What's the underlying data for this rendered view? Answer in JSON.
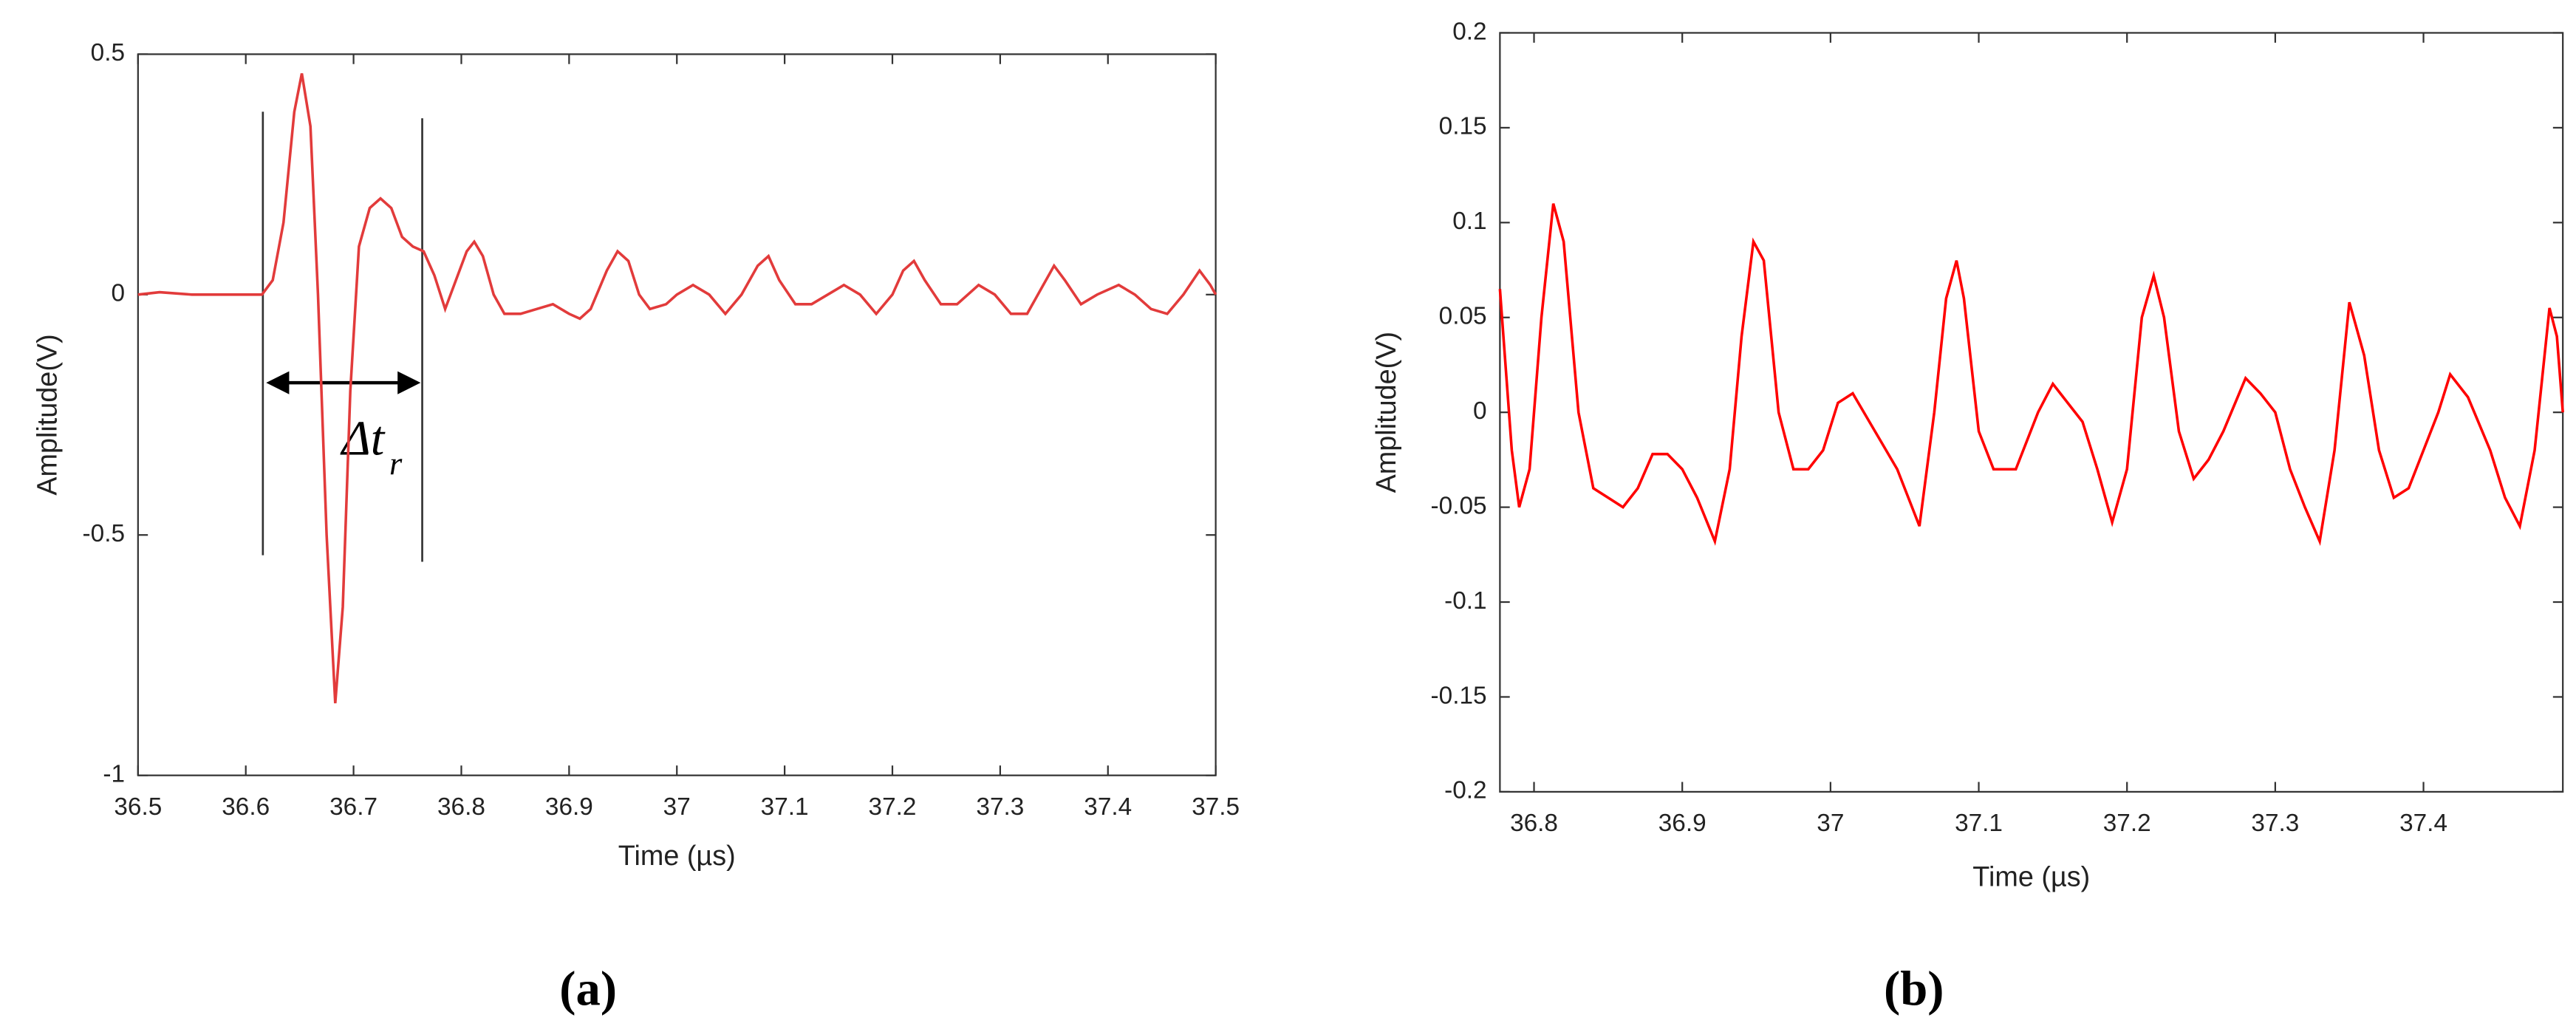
{
  "chart_data": [
    {
      "type": "line",
      "caption": "(a)",
      "xlabel": "Time (µs)",
      "ylabel": "Amplitude(V)",
      "xlim": [
        36.5,
        37.5
      ],
      "ylim": [
        -1,
        0.5
      ],
      "xticks": [
        36.5,
        36.6,
        36.7,
        36.8,
        36.9,
        37,
        37.1,
        37.2,
        37.3,
        37.4,
        37.5
      ],
      "yticks": [
        -1,
        -0.5,
        0,
        0.5
      ],
      "annotation": {
        "text": "Δt",
        "subscript": "r"
      },
      "series": [
        {
          "color": "#e23b3b",
          "x": [
            36.5,
            36.52,
            36.55,
            36.6,
            36.615,
            36.625,
            36.635,
            36.645,
            36.652,
            36.66,
            36.667,
            36.675,
            36.683,
            36.69,
            36.697,
            36.705,
            36.715,
            36.725,
            36.735,
            36.745,
            36.755,
            36.765,
            36.775,
            36.785,
            36.795,
            36.805,
            36.812,
            36.82,
            36.83,
            36.84,
            36.855,
            36.87,
            36.885,
            36.9,
            36.91,
            36.92,
            36.935,
            36.945,
            36.955,
            36.965,
            36.975,
            36.99,
            37.0,
            37.015,
            37.03,
            37.045,
            37.06,
            37.075,
            37.085,
            37.095,
            37.11,
            37.125,
            37.14,
            37.155,
            37.17,
            37.185,
            37.2,
            37.21,
            37.22,
            37.23,
            37.245,
            37.26,
            37.28,
            37.295,
            37.31,
            37.325,
            37.34,
            37.35,
            37.36,
            37.375,
            37.39,
            37.41,
            37.425,
            37.44,
            37.455,
            37.47,
            37.485,
            37.495,
            37.5
          ],
          "values": [
            0,
            0.005,
            0,
            0,
            0,
            0.03,
            0.15,
            0.38,
            0.46,
            0.35,
            0.0,
            -0.5,
            -0.85,
            -0.65,
            -0.2,
            0.1,
            0.18,
            0.2,
            0.18,
            0.12,
            0.1,
            0.09,
            0.04,
            -0.03,
            0.03,
            0.09,
            0.11,
            0.08,
            0.0,
            -0.04,
            -0.04,
            -0.03,
            -0.02,
            -0.04,
            -0.05,
            -0.03,
            0.05,
            0.09,
            0.07,
            0.0,
            -0.03,
            -0.02,
            0.0,
            0.02,
            0.0,
            -0.04,
            0.0,
            0.06,
            0.08,
            0.03,
            -0.02,
            -0.02,
            0.0,
            0.02,
            0.0,
            -0.04,
            0.0,
            0.05,
            0.07,
            0.03,
            -0.02,
            -0.02,
            0.02,
            0.0,
            -0.04,
            -0.04,
            0.02,
            0.06,
            0.03,
            -0.02,
            0.0,
            0.02,
            0.0,
            -0.03,
            -0.04,
            0.0,
            0.05,
            0.02,
            0.0
          ]
        }
      ]
    },
    {
      "type": "line",
      "caption": "(b)",
      "xlabel": "Time (µs)",
      "ylabel": "Amplitude(V)",
      "xlim": [
        36.777,
        37.494
      ],
      "ylim": [
        -0.2,
        0.2
      ],
      "xticks": [
        36.8,
        36.9,
        37,
        37.1,
        37.2,
        37.3,
        37.4
      ],
      "yticks": [
        -0.2,
        -0.15,
        -0.1,
        -0.05,
        0,
        0.05,
        0.1,
        0.15,
        0.2
      ],
      "series": [
        {
          "color": "#ff0000",
          "x": [
            36.777,
            36.785,
            36.79,
            36.797,
            36.805,
            36.813,
            36.82,
            36.83,
            36.84,
            36.85,
            36.86,
            36.87,
            36.88,
            36.89,
            36.9,
            36.91,
            36.922,
            36.932,
            36.94,
            36.948,
            36.955,
            36.965,
            36.975,
            36.985,
            36.995,
            37.005,
            37.015,
            37.03,
            37.045,
            37.06,
            37.07,
            37.078,
            37.085,
            37.09,
            37.1,
            37.11,
            37.125,
            37.14,
            37.15,
            37.16,
            37.17,
            37.18,
            37.19,
            37.2,
            37.21,
            37.218,
            37.225,
            37.235,
            37.245,
            37.255,
            37.265,
            37.28,
            37.29,
            37.3,
            37.31,
            37.32,
            37.33,
            37.34,
            37.35,
            37.36,
            37.37,
            37.38,
            37.39,
            37.41,
            37.418,
            37.43,
            37.445,
            37.455,
            37.465,
            37.475,
            37.485,
            37.49,
            37.494
          ],
          "values": [
            0.065,
            -0.02,
            -0.05,
            -0.03,
            0.05,
            0.11,
            0.09,
            0.0,
            -0.04,
            -0.045,
            -0.05,
            -0.04,
            -0.022,
            -0.022,
            -0.03,
            -0.045,
            -0.068,
            -0.03,
            0.04,
            0.09,
            0.08,
            0.0,
            -0.03,
            -0.03,
            -0.02,
            0.005,
            0.01,
            -0.01,
            -0.03,
            -0.06,
            0.0,
            0.06,
            0.08,
            0.06,
            -0.01,
            -0.03,
            -0.03,
            0.0,
            0.015,
            0.005,
            -0.005,
            -0.03,
            -0.058,
            -0.03,
            0.05,
            0.072,
            0.05,
            -0.01,
            -0.035,
            -0.025,
            -0.01,
            0.018,
            0.01,
            0.0,
            -0.03,
            -0.05,
            -0.068,
            -0.02,
            0.058,
            0.03,
            -0.02,
            -0.045,
            -0.04,
            0.0,
            0.02,
            0.008,
            -0.02,
            -0.045,
            -0.06,
            -0.02,
            0.055,
            0.04,
            0.0
          ]
        }
      ]
    }
  ]
}
